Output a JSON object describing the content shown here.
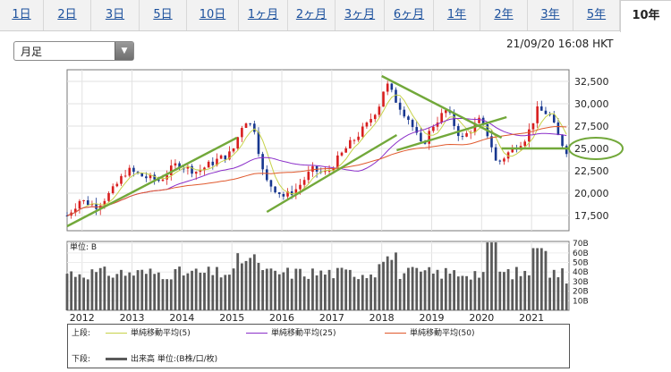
{
  "tabs": [
    {
      "label": "1日"
    },
    {
      "label": "2日"
    },
    {
      "label": "3日"
    },
    {
      "label": "5日"
    },
    {
      "label": "10日"
    },
    {
      "label": "1ヶ月"
    },
    {
      "label": "2ヶ月"
    },
    {
      "label": "3ヶ月"
    },
    {
      "label": "6ヶ月"
    },
    {
      "label": "1年"
    },
    {
      "label": "2年"
    },
    {
      "label": "3年"
    },
    {
      "label": "5年"
    },
    {
      "label": "10年"
    }
  ],
  "active_tab": "10年",
  "period_select": {
    "value": "月足"
  },
  "timestamp": "21/09/20 16:08 HKT",
  "colors": {
    "up": "#d81e1e",
    "down": "#17378f",
    "ma5": "#c7d24a",
    "ma25": "#8b2fc9",
    "ma50": "#e0592d",
    "trend": "#72a83a",
    "volume": "#5a5a5a"
  },
  "chart_data": {
    "type": "candlestick",
    "price_axis": {
      "ylim": [
        15800,
        33800
      ],
      "ticks": [
        "17,500",
        "20,000",
        "22,500",
        "25,000",
        "27,500",
        "30,000",
        "32,500"
      ]
    },
    "volume_axis": {
      "unit_label": "単位: B",
      "ylim": [
        0,
        72
      ],
      "ticks": [
        "10B",
        "20B",
        "30B",
        "40B",
        "50B",
        "60B",
        "70B"
      ]
    },
    "x_labels": [
      "2012",
      "2013",
      "2014",
      "2015",
      "2016",
      "2017",
      "2018",
      "2019",
      "2020",
      "2021"
    ],
    "x_start": 2011.7,
    "x_end": 2021.75,
    "annotations": {
      "trendlines": [
        [
          [
            2011.6,
            16300
          ],
          [
            2015.1,
            26200
          ]
        ],
        [
          [
            2015.7,
            17900
          ],
          [
            2018.3,
            26500
          ]
        ],
        [
          [
            2018.0,
            33100
          ],
          [
            2020.4,
            26200
          ]
        ],
        [
          [
            2018.3,
            24800
          ],
          [
            2020.5,
            28500
          ]
        ],
        [
          [
            2020.4,
            25000
          ],
          [
            2022.5,
            25000
          ]
        ]
      ],
      "circle_level": "25,000"
    },
    "legend": {
      "upper_label": "上段:",
      "lower_label": "下段:",
      "series": [
        {
          "name": "単純移動平均(5)",
          "color": "#c7d24a"
        },
        {
          "name": "単純移動平均(25)",
          "color": "#8b2fc9"
        },
        {
          "name": "単純移動平均(50)",
          "color": "#e0592d"
        }
      ],
      "volume_name": "出来高 単位:(B株/口/枚)"
    }
  }
}
